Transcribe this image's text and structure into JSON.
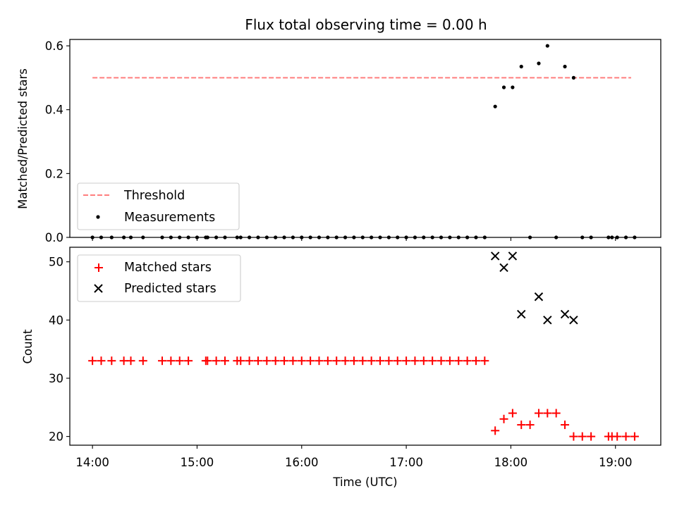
{
  "chart_data": [
    {
      "type": "scatter",
      "title": "Flux total observing time = 0.00 h",
      "xlabel": "",
      "ylabel": "Matched/Predicted stars",
      "xlim": [
        "13:47",
        "19:26"
      ],
      "ylim": [
        0,
        0.62
      ],
      "yticks": [
        "0.0",
        "0.2",
        "0.4",
        "0.6"
      ],
      "threshold": {
        "name": "Threshold",
        "value": 0.5,
        "x_range": [
          "14:00",
          "19:09"
        ],
        "color": "#ff7f7f",
        "style": "dashed"
      },
      "series": [
        {
          "name": "Measurements",
          "color": "#000000",
          "marker": "dot",
          "points": [
            [
              "14:00",
              0
            ],
            [
              "14:05",
              0
            ],
            [
              "14:11",
              0
            ],
            [
              "14:18",
              0
            ],
            [
              "14:22",
              0
            ],
            [
              "14:29",
              0
            ],
            [
              "14:40",
              0
            ],
            [
              "14:45",
              0
            ],
            [
              "14:50",
              0
            ],
            [
              "14:55",
              0
            ],
            [
              "15:00",
              0
            ],
            [
              "15:05",
              0
            ],
            [
              "15:06",
              0
            ],
            [
              "15:11",
              0
            ],
            [
              "15:16",
              0
            ],
            [
              "15:23",
              0
            ],
            [
              "15:25",
              0
            ],
            [
              "15:30",
              0
            ],
            [
              "15:35",
              0
            ],
            [
              "15:40",
              0
            ],
            [
              "15:45",
              0
            ],
            [
              "15:50",
              0
            ],
            [
              "15:55",
              0
            ],
            [
              "16:00",
              0
            ],
            [
              "16:05",
              0
            ],
            [
              "16:10",
              0
            ],
            [
              "16:15",
              0
            ],
            [
              "16:20",
              0
            ],
            [
              "16:25",
              0
            ],
            [
              "16:30",
              0
            ],
            [
              "16:35",
              0
            ],
            [
              "16:40",
              0
            ],
            [
              "16:45",
              0
            ],
            [
              "16:50",
              0
            ],
            [
              "16:55",
              0
            ],
            [
              "17:00",
              0
            ],
            [
              "17:05",
              0
            ],
            [
              "17:10",
              0
            ],
            [
              "17:15",
              0
            ],
            [
              "17:20",
              0
            ],
            [
              "17:25",
              0
            ],
            [
              "17:30",
              0
            ],
            [
              "17:35",
              0
            ],
            [
              "17:40",
              0
            ],
            [
              "17:45",
              0
            ],
            [
              "17:51",
              0.41
            ],
            [
              "17:56",
              0.47
            ],
            [
              "18:01",
              0.47
            ],
            [
              "18:06",
              0.535
            ],
            [
              "18:11",
              0
            ],
            [
              "18:16",
              0.545
            ],
            [
              "18:21",
              0.6
            ],
            [
              "18:26",
              0
            ],
            [
              "18:31",
              0.535
            ],
            [
              "18:36",
              0.5
            ],
            [
              "18:41",
              0
            ],
            [
              "18:46",
              0
            ],
            [
              "18:56",
              0
            ],
            [
              "18:58",
              0
            ],
            [
              "19:01",
              0
            ],
            [
              "19:06",
              0
            ],
            [
              "19:11",
              0
            ]
          ]
        }
      ],
      "legend": {
        "placement": "lower-left",
        "entries": [
          "Threshold",
          "Measurements"
        ]
      },
      "grid": false
    },
    {
      "type": "scatter",
      "title": "",
      "xlabel": "Time (UTC)",
      "ylabel": "Count",
      "xlim": [
        "13:47",
        "19:26"
      ],
      "ylim": [
        18.5,
        52.5
      ],
      "xticks": [
        "14:00",
        "15:00",
        "16:00",
        "17:00",
        "18:00",
        "19:00"
      ],
      "yticks": [
        "20",
        "30",
        "40",
        "50"
      ],
      "series": [
        {
          "name": "Matched stars",
          "color": "#ff0000",
          "marker": "plus",
          "points": [
            [
              "14:00",
              33
            ],
            [
              "14:05",
              33
            ],
            [
              "14:11",
              33
            ],
            [
              "14:18",
              33
            ],
            [
              "14:22",
              33
            ],
            [
              "14:29",
              33
            ],
            [
              "14:40",
              33
            ],
            [
              "14:45",
              33
            ],
            [
              "14:50",
              33
            ],
            [
              "14:55",
              33
            ],
            [
              "15:05",
              33
            ],
            [
              "15:06",
              33
            ],
            [
              "15:11",
              33
            ],
            [
              "15:16",
              33
            ],
            [
              "15:23",
              33
            ],
            [
              "15:25",
              33
            ],
            [
              "15:30",
              33
            ],
            [
              "15:35",
              33
            ],
            [
              "15:40",
              33
            ],
            [
              "15:45",
              33
            ],
            [
              "15:50",
              33
            ],
            [
              "15:55",
              33
            ],
            [
              "16:00",
              33
            ],
            [
              "16:05",
              33
            ],
            [
              "16:10",
              33
            ],
            [
              "16:15",
              33
            ],
            [
              "16:20",
              33
            ],
            [
              "16:25",
              33
            ],
            [
              "16:30",
              33
            ],
            [
              "16:35",
              33
            ],
            [
              "16:40",
              33
            ],
            [
              "16:45",
              33
            ],
            [
              "16:50",
              33
            ],
            [
              "16:55",
              33
            ],
            [
              "17:00",
              33
            ],
            [
              "17:05",
              33
            ],
            [
              "17:10",
              33
            ],
            [
              "17:15",
              33
            ],
            [
              "17:20",
              33
            ],
            [
              "17:25",
              33
            ],
            [
              "17:30",
              33
            ],
            [
              "17:35",
              33
            ],
            [
              "17:40",
              33
            ],
            [
              "17:45",
              33
            ],
            [
              "17:51",
              21
            ],
            [
              "17:56",
              23
            ],
            [
              "18:01",
              24
            ],
            [
              "18:06",
              22
            ],
            [
              "18:11",
              22
            ],
            [
              "18:16",
              24
            ],
            [
              "18:21",
              24
            ],
            [
              "18:26",
              24
            ],
            [
              "18:31",
              22
            ],
            [
              "18:36",
              20
            ],
            [
              "18:41",
              20
            ],
            [
              "18:46",
              20
            ],
            [
              "18:56",
              20
            ],
            [
              "18:58",
              20
            ],
            [
              "19:01",
              20
            ],
            [
              "19:06",
              20
            ],
            [
              "19:11",
              20
            ]
          ]
        },
        {
          "name": "Predicted stars",
          "color": "#000000",
          "marker": "x",
          "points": [
            [
              "17:51",
              51
            ],
            [
              "17:56",
              49
            ],
            [
              "18:01",
              51
            ],
            [
              "18:06",
              41
            ],
            [
              "18:16",
              44
            ],
            [
              "18:21",
              40
            ],
            [
              "18:31",
              41
            ],
            [
              "18:36",
              40
            ]
          ]
        }
      ],
      "legend": {
        "placement": "upper-left",
        "entries": [
          "Matched stars",
          "Predicted stars"
        ]
      },
      "grid": false
    }
  ]
}
